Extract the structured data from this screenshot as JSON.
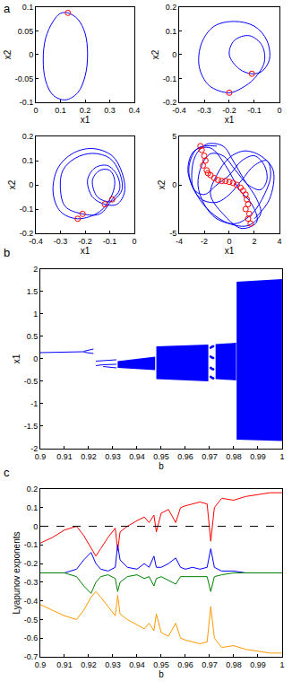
{
  "chart_data": [
    {
      "type": "phase",
      "title": "a",
      "x_label": "x1",
      "y_label": "x2",
      "xlim": [
        0,
        0.4
      ],
      "xticks": [
        0,
        0.1,
        0.2,
        0.3,
        0.4
      ],
      "ylim": [
        -0.1,
        0.1
      ],
      "yticks": [
        -0.1,
        -0.05,
        0,
        0.05,
        0.1
      ],
      "series": [
        {
          "type": "line",
          "color": "#0000ff",
          "x": [
            0.13,
            0.17,
            0.2,
            0.21,
            0.2,
            0.17,
            0.12,
            0.07,
            0.04,
            0.03,
            0.04,
            0.07,
            0.1,
            0.13
          ],
          "values": [
            0.088,
            0.075,
            0.045,
            0.0,
            -0.045,
            -0.08,
            -0.095,
            -0.085,
            -0.055,
            -0.01,
            0.035,
            0.07,
            0.087,
            0.088
          ]
        },
        {
          "type": "scatter",
          "color": "#ff0000",
          "marker": "open_circle",
          "x": [
            0.13
          ],
          "values": [
            0.088
          ]
        }
      ]
    },
    {
      "type": "phase",
      "x_label": "x1",
      "y_label": "x2",
      "xlim": [
        -0.4,
        0
      ],
      "xticks": [
        -0.4,
        -0.3,
        -0.2,
        -0.1,
        0
      ],
      "ylim": [
        -0.2,
        0.2
      ],
      "yticks": [
        -0.2,
        -0.1,
        0,
        0.1,
        0.2
      ],
      "series": [
        {
          "type": "line",
          "color": "#0000ff",
          "x": [
            -0.2,
            -0.28,
            -0.32,
            -0.31,
            -0.26,
            -0.18,
            -0.1,
            -0.05,
            -0.04,
            -0.07,
            -0.11,
            -0.16,
            -0.2,
            -0.18,
            -0.12,
            -0.07,
            -0.06,
            -0.1,
            -0.15,
            -0.2
          ],
          "values": [
            -0.16,
            -0.13,
            -0.05,
            0.05,
            0.12,
            0.14,
            0.12,
            0.06,
            -0.02,
            -0.07,
            -0.08,
            -0.06,
            0.0,
            0.06,
            0.08,
            0.04,
            -0.03,
            -0.1,
            -0.14,
            -0.16
          ]
        },
        {
          "type": "scatter",
          "color": "#ff0000",
          "marker": "open_circle",
          "x": [
            -0.2,
            -0.11
          ],
          "values": [
            -0.16,
            -0.08
          ]
        }
      ]
    },
    {
      "type": "phase",
      "x_label": "x1",
      "y_label": "x2",
      "xlim": [
        -0.4,
        0
      ],
      "xticks": [
        -0.4,
        -0.3,
        -0.2,
        -0.1,
        0
      ],
      "ylim": [
        -0.2,
        0.2
      ],
      "yticks": [
        -0.2,
        -0.1,
        0,
        0.1,
        0.2
      ],
      "series": [
        {
          "type": "line",
          "color": "#0000ff",
          "x": [
            -0.23,
            -0.3,
            -0.33,
            -0.31,
            -0.25,
            -0.17,
            -0.09,
            -0.05,
            -0.04,
            -0.07,
            -0.12,
            -0.17,
            -0.19,
            -0.16,
            -0.11,
            -0.07,
            -0.06,
            -0.09,
            -0.14,
            -0.21,
            -0.28,
            -0.3,
            -0.29,
            -0.24,
            -0.17,
            -0.1,
            -0.06,
            -0.05,
            -0.08,
            -0.1,
            -0.15,
            -0.17,
            -0.14,
            -0.1,
            -0.08,
            -0.09,
            -0.14,
            -0.23
          ],
          "values": [
            -0.14,
            -0.11,
            -0.03,
            0.07,
            0.13,
            0.15,
            0.12,
            0.05,
            -0.03,
            -0.08,
            -0.08,
            -0.05,
            0.02,
            0.07,
            0.08,
            0.04,
            -0.02,
            -0.06,
            -0.12,
            -0.12,
            -0.09,
            -0.02,
            0.06,
            0.11,
            0.13,
            0.11,
            0.05,
            -0.02,
            -0.06,
            -0.07,
            -0.05,
            0.02,
            0.06,
            0.06,
            0.02,
            -0.04,
            -0.11,
            -0.14
          ]
        },
        {
          "type": "scatter",
          "color": "#ff0000",
          "marker": "open_circle",
          "x": [
            -0.23,
            -0.21,
            -0.12,
            -0.09
          ],
          "values": [
            -0.14,
            -0.12,
            -0.08,
            -0.06
          ]
        }
      ]
    },
    {
      "type": "phase",
      "x_label": "x1",
      "y_label": "x2",
      "xlim": [
        -4,
        4
      ],
      "xticks": [
        -4,
        -2,
        0,
        2,
        4
      ],
      "ylim": [
        -5,
        5
      ],
      "yticks": [
        -5,
        0,
        5
      ],
      "series": [
        {
          "type": "line",
          "color": "#0000ff",
          "x": [
            -1,
            -2.5,
            -3.2,
            -3,
            -2.2,
            -1,
            0,
            1,
            2,
            3,
            3.3,
            2.8,
            1.8,
            0.5,
            -1,
            -2,
            -2.5,
            -2.2,
            -1.5,
            -0.5,
            0.5,
            1.5,
            2.5,
            3,
            2.8,
            2,
            1,
            0,
            -1,
            -2,
            -2.8,
            -3,
            -2.7,
            -1.8,
            -0.5,
            0.3,
            1.2,
            2.2,
            2.5,
            1.5,
            0,
            -1.5,
            -2.6,
            -3.3,
            -2.8,
            -1.5,
            -0.3,
            0.8,
            1.8,
            2.2,
            1,
            -0.5,
            -1.5,
            -1,
            0,
            1.2,
            2.5,
            3.5,
            3.2,
            2
          ],
          "values": [
            4,
            3.8,
            2,
            0,
            -1.5,
            -1.8,
            -1,
            0.5,
            2,
            2.5,
            1,
            -1,
            -3,
            -4,
            -3.5,
            -2,
            0,
            2,
            3.2,
            3,
            1.5,
            0,
            -0.5,
            0.5,
            2,
            3,
            2.5,
            1,
            0,
            -1,
            -0.5,
            1,
            3,
            4.2,
            4,
            2.5,
            0.5,
            -1.5,
            -3,
            -4.2,
            -4,
            -2.8,
            -1,
            1.5,
            3.5,
            3.8,
            2,
            -0.5,
            -2,
            -3.8,
            -4.5,
            -3,
            -1,
            1,
            2.8,
            3.5,
            3,
            1.5,
            -1.5,
            -3.5
          ]
        },
        {
          "type": "scatter",
          "color": "#ff0000",
          "marker": "open_circle",
          "x": [
            -2.2,
            -2.0,
            -1.9,
            -2.1,
            -1.8,
            -1.5,
            -1.2,
            -0.9,
            -0.6,
            -0.3,
            0,
            0.3,
            0.6,
            0.9,
            1.1,
            1.3,
            1.4,
            1.5,
            1.3,
            1.6,
            1.5,
            1.7,
            -2.3,
            -1.7
          ],
          "values": [
            3.6,
            3.0,
            2.5,
            2.0,
            1.5,
            1.0,
            0.7,
            0.5,
            0.4,
            0.4,
            0.3,
            0.2,
            0.0,
            -0.3,
            -0.6,
            -1.0,
            -1.5,
            -2.0,
            -2.5,
            -3.0,
            -3.5,
            -4.0,
            4.0,
            1.2
          ]
        }
      ]
    },
    {
      "type": "scatter",
      "title": "b",
      "x_label": "b",
      "y_label": "x1",
      "xlim": [
        0.9,
        1
      ],
      "xticks": [
        0.9,
        0.91,
        0.92,
        0.93,
        0.94,
        0.95,
        0.96,
        0.97,
        0.98,
        0.99,
        1
      ],
      "ylim": [
        -2,
        2
      ],
      "yticks": [
        -2,
        -1.5,
        -1,
        -0.5,
        0,
        0.5,
        1,
        1.5,
        2
      ],
      "series": [
        {
          "type": "line",
          "color": "#0000ff",
          "x": [
            0.9,
            0.91,
            0.918
          ],
          "values": [
            0.14,
            0.15,
            0.16
          ]
        },
        {
          "type": "line",
          "color": "#0000ff",
          "x": [
            0.918,
            0.92,
            0.922
          ],
          "values": [
            0.17,
            0.2,
            0.22
          ]
        },
        {
          "type": "line",
          "color": "#0000ff",
          "x": [
            0.918,
            0.92,
            0.922
          ],
          "values": [
            0.15,
            0.13,
            0.12
          ]
        },
        {
          "type": "line",
          "color": "#0000ff",
          "x": [
            0.923,
            0.927,
            0.9315
          ],
          "values": [
            -0.05,
            -0.03,
            -0.02
          ]
        },
        {
          "type": "line",
          "color": "#0000ff",
          "x": [
            0.923,
            0.926,
            0.9315
          ],
          "values": [
            -0.15,
            -0.13,
            -0.12
          ]
        },
        {
          "type": "line",
          "color": "#0000ff",
          "x": [
            0.926,
            0.9315
          ],
          "values": [
            -0.17,
            -0.2
          ]
        },
        {
          "type": "band",
          "color": "#0000ff",
          "x": [
            0.932,
            0.94,
            0.9475
          ],
          "lower": [
            -0.2,
            -0.22,
            -0.25
          ],
          "upper": [
            -0.05,
            0.0,
            0.05
          ]
        },
        {
          "type": "band",
          "color": "#0000ff",
          "x": [
            0.948,
            0.958,
            0.9695
          ],
          "lower": [
            -0.45,
            -0.47,
            -0.5
          ],
          "upper": [
            0.28,
            0.3,
            0.32
          ]
        },
        {
          "color": "#0000ff",
          "marker": "dot",
          "x": [
            0.9705,
            0.9705,
            0.9705,
            0.9705,
            0.971,
            0.971,
            0.971,
            0.971,
            0.9715,
            0.9715,
            0.9715,
            0.9715
          ],
          "values": [
            0.25,
            0.05,
            -0.2,
            -0.4,
            0.27,
            0.03,
            -0.22,
            -0.42,
            0.28,
            0.02,
            -0.23,
            -0.43
          ]
        },
        {
          "type": "band",
          "color": "#0000ff",
          "x": [
            0.9725,
            0.977,
            0.981
          ],
          "lower": [
            -0.45,
            -0.47,
            -0.48
          ],
          "upper": [
            0.33,
            0.35,
            0.36
          ]
        },
        {
          "type": "band",
          "color": "#0000ff",
          "x": [
            0.9812,
            0.99,
            1
          ],
          "lower": [
            -1.8,
            -1.82,
            -1.83
          ],
          "upper": [
            1.72,
            1.75,
            1.78
          ]
        }
      ]
    },
    {
      "type": "line",
      "title": "c",
      "x_label": "b",
      "y_label": "Lyapunov exponents",
      "xlim": [
        0.9,
        1
      ],
      "xticks": [
        0.9,
        0.91,
        0.92,
        0.93,
        0.94,
        0.95,
        0.96,
        0.97,
        0.98,
        0.99,
        1
      ],
      "ylim": [
        -0.7,
        0.2
      ],
      "yticks": [
        -0.7,
        -0.6,
        -0.5,
        -0.4,
        -0.3,
        -0.2,
        -0.1,
        0,
        0.1,
        0.2
      ],
      "x": [
        0.9,
        0.905,
        0.91,
        0.915,
        0.918,
        0.921,
        0.923,
        0.925,
        0.928,
        0.931,
        0.932,
        0.933,
        0.936,
        0.94,
        0.943,
        0.945,
        0.947,
        0.948,
        0.95,
        0.953,
        0.956,
        0.958,
        0.96,
        0.963,
        0.966,
        0.969,
        0.9705,
        0.972,
        0.975,
        0.98,
        0.985,
        0.99,
        0.995,
        1
      ],
      "series": [
        {
          "color": "#ff0000",
          "values": [
            -0.09,
            -0.06,
            -0.02,
            0,
            -0.05,
            -0.12,
            -0.16,
            -0.12,
            -0.06,
            -0.01,
            -0.13,
            -0.03,
            0,
            0.03,
            0.05,
            0.02,
            0.06,
            -0.03,
            0.07,
            0.09,
            0.02,
            0.1,
            0.11,
            0.12,
            0.13,
            0.12,
            -0.08,
            0.1,
            0.15,
            0.14,
            0.16,
            0.17,
            0.18,
            0.18
          ]
        },
        {
          "color": "#0000ff",
          "values": [
            -0.25,
            -0.25,
            -0.25,
            -0.23,
            -0.18,
            -0.14,
            -0.2,
            -0.23,
            -0.24,
            -0.22,
            -0.1,
            -0.18,
            -0.22,
            -0.23,
            -0.2,
            -0.22,
            -0.16,
            -0.22,
            -0.22,
            -0.2,
            -0.17,
            -0.22,
            -0.23,
            -0.22,
            -0.23,
            -0.22,
            -0.12,
            -0.22,
            -0.24,
            -0.24,
            -0.25,
            -0.25,
            -0.25,
            -0.25
          ]
        },
        {
          "color": "#008000",
          "values": [
            -0.25,
            -0.25,
            -0.25,
            -0.27,
            -0.32,
            -0.36,
            -0.3,
            -0.27,
            -0.26,
            -0.28,
            -0.35,
            -0.3,
            -0.27,
            -0.26,
            -0.28,
            -0.27,
            -0.32,
            -0.28,
            -0.27,
            -0.29,
            -0.31,
            -0.27,
            -0.27,
            -0.27,
            -0.27,
            -0.27,
            -0.35,
            -0.27,
            -0.26,
            -0.25,
            -0.25,
            -0.25,
            -0.25,
            -0.25
          ]
        },
        {
          "color": "#ff9900",
          "values": [
            -0.42,
            -0.45,
            -0.48,
            -0.5,
            -0.45,
            -0.38,
            -0.35,
            -0.38,
            -0.43,
            -0.48,
            -0.37,
            -0.47,
            -0.5,
            -0.53,
            -0.55,
            -0.52,
            -0.56,
            -0.47,
            -0.57,
            -0.59,
            -0.52,
            -0.6,
            -0.61,
            -0.62,
            -0.63,
            -0.62,
            -0.43,
            -0.6,
            -0.65,
            -0.64,
            -0.66,
            -0.67,
            -0.68,
            -0.68
          ]
        },
        {
          "color": "#000000",
          "line_style": "dashed",
          "x": [
            0.9,
            1
          ],
          "values": [
            0,
            0
          ]
        }
      ]
    }
  ]
}
